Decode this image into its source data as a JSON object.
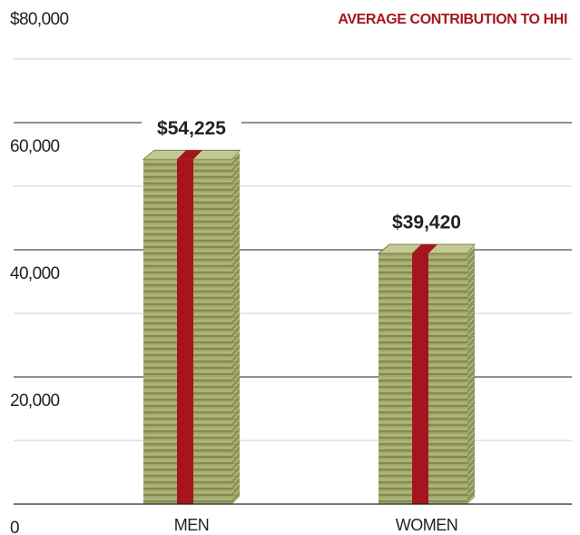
{
  "chart_data": {
    "type": "bar",
    "title": "AVERAGE CONTRIBUTION TO HHI",
    "categories": [
      "MEN",
      "WOMEN"
    ],
    "values": [
      54225,
      39420
    ],
    "value_labels": [
      "$54,225",
      "$39,420"
    ],
    "color": "#a2a86a",
    "band_color": "#a6151d",
    "ylim": [
      0,
      80000
    ],
    "yticks": [
      0,
      {
        "value": 20000,
        "label": "20,000"
      },
      {
        "value": 40000,
        "label": "40,000"
      },
      {
        "value": 60000,
        "label": "60,000"
      },
      {
        "value": 80000,
        "label": "$80,000"
      }
    ],
    "yminorticks": [
      10000,
      30000,
      50000,
      70000
    ],
    "grid": true
  }
}
